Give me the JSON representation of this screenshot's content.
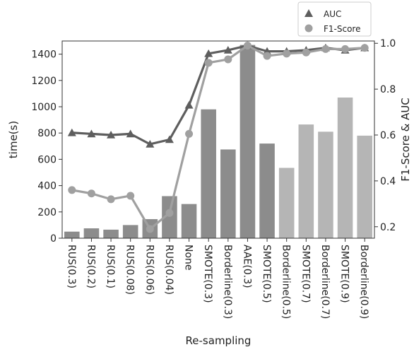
{
  "chart_data": {
    "type": "bar",
    "xlabel": "Re-sampling",
    "ylabel": "time(s)",
    "y2label": "F1-Score & AUC",
    "ylim": [
      0,
      1500
    ],
    "y2lim": [
      0.15,
      1.01
    ],
    "yticks": [
      0,
      200,
      400,
      600,
      800,
      1000,
      1200,
      1400
    ],
    "y2ticks": [
      "0.2",
      "0.4",
      "0.6",
      "0.8",
      "1.0"
    ],
    "categories": [
      "RUS(0.3)",
      "RUS(0.2)",
      "RUS(0.1)",
      "RUS(0.08)",
      "RUS(0.06)",
      "RUS(0.04)",
      "None",
      "SMOTE(0.3)",
      "Borderline(0.3)",
      "AAE(0.3)",
      "SMOTE(0.5)",
      "Borderline(0.5)",
      "SMOTE(0.7)",
      "Borderline(0.7)",
      "SMOTE(0.9)",
      "Borderline(0.9)"
    ],
    "time_values": [
      50,
      75,
      65,
      100,
      145,
      320,
      260,
      980,
      675,
      1470,
      720,
      535,
      865,
      810,
      1070,
      780
    ],
    "series": [
      {
        "name": "AUC",
        "values": [
          0.61,
          0.605,
          0.6,
          0.605,
          0.56,
          0.58,
          0.73,
          0.955,
          0.97,
          0.99,
          0.965,
          0.965,
          0.97,
          0.98,
          0.97,
          0.98
        ]
      },
      {
        "name": "F1-Score",
        "values": [
          0.36,
          0.345,
          0.32,
          0.335,
          0.19,
          0.26,
          0.605,
          0.915,
          0.93,
          0.99,
          0.945,
          0.955,
          0.96,
          0.975,
          0.975,
          0.98
        ]
      }
    ],
    "legend": {
      "placement": "top-right"
    },
    "grid": false,
    "colors": {
      "bar_dark": "#8c8c8c",
      "bar_light": "#b5b5b5",
      "auc": "#5e5e5e",
      "f1": "#a0a0a0",
      "axis": "#333333"
    }
  }
}
